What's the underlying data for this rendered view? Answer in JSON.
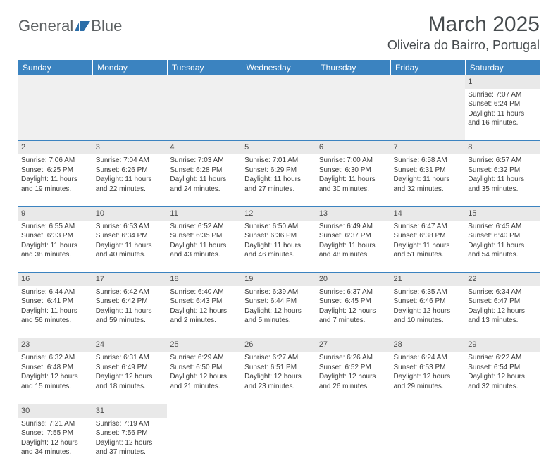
{
  "brand": {
    "text1": "General",
    "text2": "Blue",
    "logo_fill": "#2c6ea8"
  },
  "title": "March 2025",
  "location": "Oliveira do Bairro, Portugal",
  "header_bg": "#3b83c0",
  "daynum_bg": "#e9e9e9",
  "border_color": "#3b83c0",
  "days": [
    "Sunday",
    "Monday",
    "Tuesday",
    "Wednesday",
    "Thursday",
    "Friday",
    "Saturday"
  ],
  "weeks": [
    [
      null,
      null,
      null,
      null,
      null,
      null,
      {
        "n": "1",
        "sr": "Sunrise: 7:07 AM",
        "ss": "Sunset: 6:24 PM",
        "dl": "Daylight: 11 hours and 16 minutes."
      }
    ],
    [
      {
        "n": "2",
        "sr": "Sunrise: 7:06 AM",
        "ss": "Sunset: 6:25 PM",
        "dl": "Daylight: 11 hours and 19 minutes."
      },
      {
        "n": "3",
        "sr": "Sunrise: 7:04 AM",
        "ss": "Sunset: 6:26 PM",
        "dl": "Daylight: 11 hours and 22 minutes."
      },
      {
        "n": "4",
        "sr": "Sunrise: 7:03 AM",
        "ss": "Sunset: 6:28 PM",
        "dl": "Daylight: 11 hours and 24 minutes."
      },
      {
        "n": "5",
        "sr": "Sunrise: 7:01 AM",
        "ss": "Sunset: 6:29 PM",
        "dl": "Daylight: 11 hours and 27 minutes."
      },
      {
        "n": "6",
        "sr": "Sunrise: 7:00 AM",
        "ss": "Sunset: 6:30 PM",
        "dl": "Daylight: 11 hours and 30 minutes."
      },
      {
        "n": "7",
        "sr": "Sunrise: 6:58 AM",
        "ss": "Sunset: 6:31 PM",
        "dl": "Daylight: 11 hours and 32 minutes."
      },
      {
        "n": "8",
        "sr": "Sunrise: 6:57 AM",
        "ss": "Sunset: 6:32 PM",
        "dl": "Daylight: 11 hours and 35 minutes."
      }
    ],
    [
      {
        "n": "9",
        "sr": "Sunrise: 6:55 AM",
        "ss": "Sunset: 6:33 PM",
        "dl": "Daylight: 11 hours and 38 minutes."
      },
      {
        "n": "10",
        "sr": "Sunrise: 6:53 AM",
        "ss": "Sunset: 6:34 PM",
        "dl": "Daylight: 11 hours and 40 minutes."
      },
      {
        "n": "11",
        "sr": "Sunrise: 6:52 AM",
        "ss": "Sunset: 6:35 PM",
        "dl": "Daylight: 11 hours and 43 minutes."
      },
      {
        "n": "12",
        "sr": "Sunrise: 6:50 AM",
        "ss": "Sunset: 6:36 PM",
        "dl": "Daylight: 11 hours and 46 minutes."
      },
      {
        "n": "13",
        "sr": "Sunrise: 6:49 AM",
        "ss": "Sunset: 6:37 PM",
        "dl": "Daylight: 11 hours and 48 minutes."
      },
      {
        "n": "14",
        "sr": "Sunrise: 6:47 AM",
        "ss": "Sunset: 6:38 PM",
        "dl": "Daylight: 11 hours and 51 minutes."
      },
      {
        "n": "15",
        "sr": "Sunrise: 6:45 AM",
        "ss": "Sunset: 6:40 PM",
        "dl": "Daylight: 11 hours and 54 minutes."
      }
    ],
    [
      {
        "n": "16",
        "sr": "Sunrise: 6:44 AM",
        "ss": "Sunset: 6:41 PM",
        "dl": "Daylight: 11 hours and 56 minutes."
      },
      {
        "n": "17",
        "sr": "Sunrise: 6:42 AM",
        "ss": "Sunset: 6:42 PM",
        "dl": "Daylight: 11 hours and 59 minutes."
      },
      {
        "n": "18",
        "sr": "Sunrise: 6:40 AM",
        "ss": "Sunset: 6:43 PM",
        "dl": "Daylight: 12 hours and 2 minutes."
      },
      {
        "n": "19",
        "sr": "Sunrise: 6:39 AM",
        "ss": "Sunset: 6:44 PM",
        "dl": "Daylight: 12 hours and 5 minutes."
      },
      {
        "n": "20",
        "sr": "Sunrise: 6:37 AM",
        "ss": "Sunset: 6:45 PM",
        "dl": "Daylight: 12 hours and 7 minutes."
      },
      {
        "n": "21",
        "sr": "Sunrise: 6:35 AM",
        "ss": "Sunset: 6:46 PM",
        "dl": "Daylight: 12 hours and 10 minutes."
      },
      {
        "n": "22",
        "sr": "Sunrise: 6:34 AM",
        "ss": "Sunset: 6:47 PM",
        "dl": "Daylight: 12 hours and 13 minutes."
      }
    ],
    [
      {
        "n": "23",
        "sr": "Sunrise: 6:32 AM",
        "ss": "Sunset: 6:48 PM",
        "dl": "Daylight: 12 hours and 15 minutes."
      },
      {
        "n": "24",
        "sr": "Sunrise: 6:31 AM",
        "ss": "Sunset: 6:49 PM",
        "dl": "Daylight: 12 hours and 18 minutes."
      },
      {
        "n": "25",
        "sr": "Sunrise: 6:29 AM",
        "ss": "Sunset: 6:50 PM",
        "dl": "Daylight: 12 hours and 21 minutes."
      },
      {
        "n": "26",
        "sr": "Sunrise: 6:27 AM",
        "ss": "Sunset: 6:51 PM",
        "dl": "Daylight: 12 hours and 23 minutes."
      },
      {
        "n": "27",
        "sr": "Sunrise: 6:26 AM",
        "ss": "Sunset: 6:52 PM",
        "dl": "Daylight: 12 hours and 26 minutes."
      },
      {
        "n": "28",
        "sr": "Sunrise: 6:24 AM",
        "ss": "Sunset: 6:53 PM",
        "dl": "Daylight: 12 hours and 29 minutes."
      },
      {
        "n": "29",
        "sr": "Sunrise: 6:22 AM",
        "ss": "Sunset: 6:54 PM",
        "dl": "Daylight: 12 hours and 32 minutes."
      }
    ],
    [
      {
        "n": "30",
        "sr": "Sunrise: 7:21 AM",
        "ss": "Sunset: 7:55 PM",
        "dl": "Daylight: 12 hours and 34 minutes."
      },
      {
        "n": "31",
        "sr": "Sunrise: 7:19 AM",
        "ss": "Sunset: 7:56 PM",
        "dl": "Daylight: 12 hours and 37 minutes."
      },
      null,
      null,
      null,
      null,
      null
    ]
  ]
}
